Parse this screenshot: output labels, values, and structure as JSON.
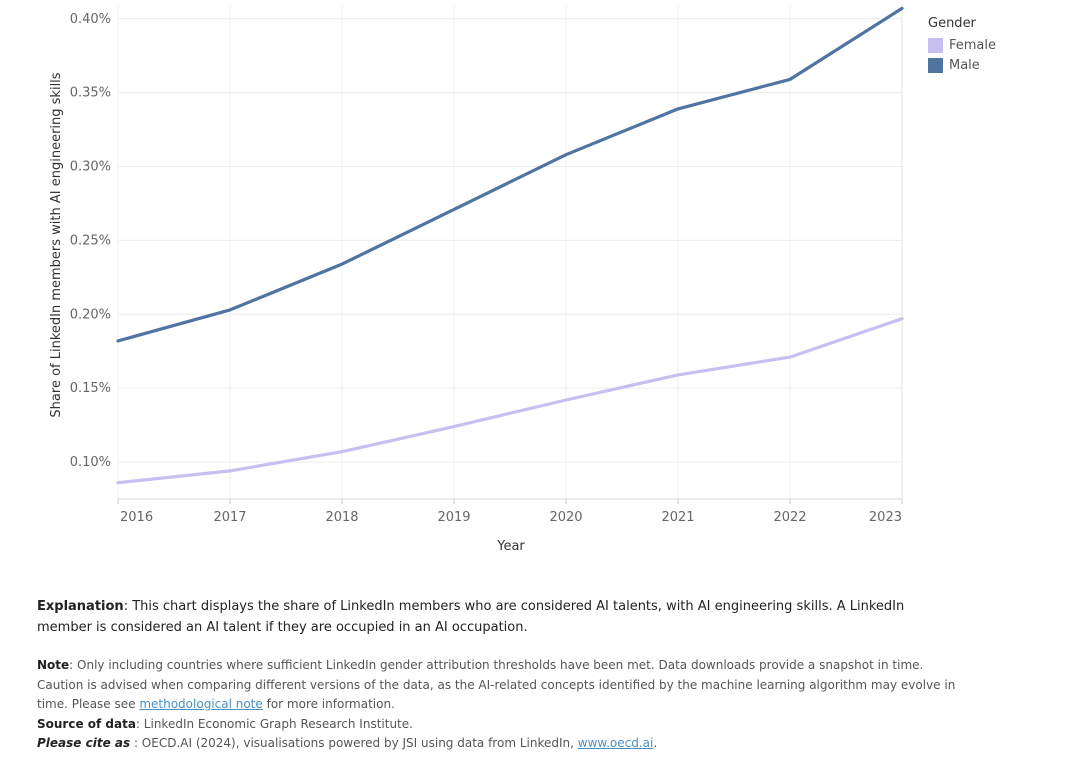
{
  "chart_data": {
    "type": "line",
    "title": "",
    "xlabel": "Year",
    "ylabel": "Share of LinkedIn members with AI engineering skills",
    "x": [
      2016,
      2017,
      2018,
      2019,
      2020,
      2021,
      2022,
      2023
    ],
    "xlim": [
      2016,
      2023
    ],
    "ylim": [
      0.075,
      0.41
    ],
    "yticks": [
      0.1,
      0.15,
      0.2,
      0.25,
      0.3,
      0.35,
      0.4
    ],
    "ytick_labels": [
      "0.10%",
      "0.15%",
      "0.20%",
      "0.25%",
      "0.30%",
      "0.35%",
      "0.40%"
    ],
    "xtick_labels": [
      "2016",
      "2017",
      "2018",
      "2019",
      "2020",
      "2021",
      "2022",
      "2023"
    ],
    "series": [
      {
        "name": "Female",
        "color": "#c7bff0",
        "values": [
          0.086,
          0.094,
          0.107,
          0.124,
          0.142,
          0.159,
          0.171,
          0.197
        ]
      },
      {
        "name": "Male",
        "color": "#4f74a2",
        "values": [
          0.182,
          0.203,
          0.234,
          0.271,
          0.308,
          0.339,
          0.359,
          0.407
        ]
      }
    ],
    "legend": {
      "title": "Gender",
      "placement": "top-right"
    },
    "grid": true
  },
  "notes": {
    "explanation_label": "Explanation",
    "explanation_text": ": This chart displays the share of LinkedIn members who are considered AI talents, with AI engineering skills. A LinkedIn member is considered an AI talent if they are occupied in an AI occupation.",
    "note_label": "Note",
    "note_text_1": ": Only including countries where sufficient LinkedIn gender attribution thresholds have been met. Data downloads provide a snapshot in time. Caution is advised when comparing different versions of the data, as the AI-related concepts identified by the machine learning algorithm may evolve in time. Please see ",
    "note_link": "methodological note",
    "note_text_2": " for more information.",
    "source_label": "Source of data",
    "source_text": ": LinkedIn Economic Graph Research Institute.",
    "cite_label": "Please cite as",
    "cite_text": " : OECD.AI (2024), visualisations powered by JSI using data from LinkedIn, ",
    "cite_link": "www.oecd.ai",
    "cite_end": "."
  }
}
